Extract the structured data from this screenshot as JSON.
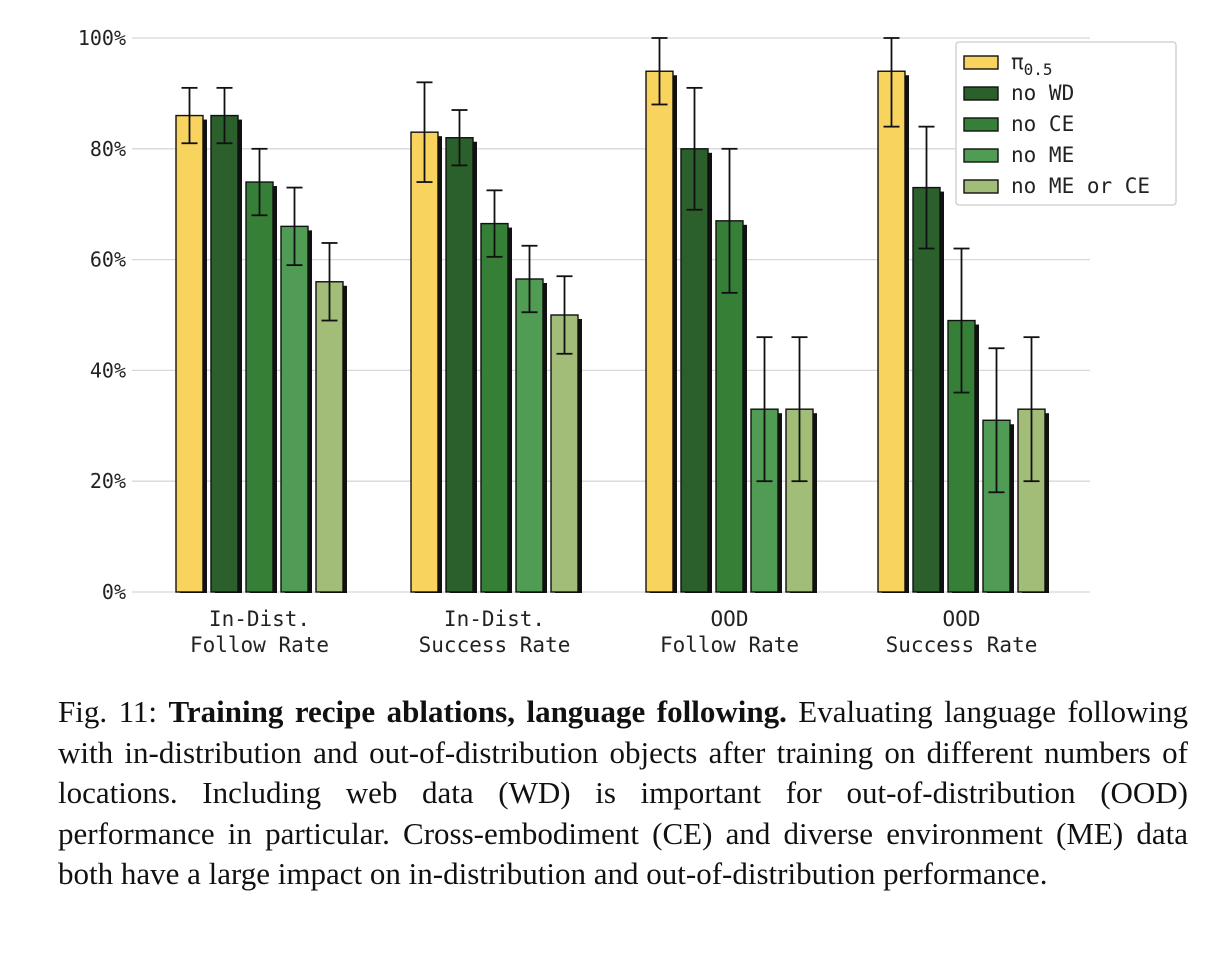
{
  "chart_data": {
    "type": "bar",
    "categories": [
      [
        "In-Dist.",
        "Follow Rate"
      ],
      [
        "In-Dist.",
        "Success Rate"
      ],
      [
        "OOD",
        "Follow Rate"
      ],
      [
        "OOD",
        "Success Rate"
      ]
    ],
    "yticks": [
      "0%",
      "20%",
      "40%",
      "60%",
      "80%",
      "100%"
    ],
    "ylim": [
      0,
      100
    ],
    "grid": "horizontal",
    "legend_position": "top-right",
    "series": [
      {
        "name": "π",
        "name_sub": "0.5",
        "color": "#f8d35e",
        "values": [
          86,
          83,
          94,
          94
        ],
        "err_low": [
          81,
          74,
          88,
          84
        ],
        "err_high": [
          91,
          92,
          100,
          100
        ]
      },
      {
        "name": "no WD",
        "color": "#2b5f2b",
        "values": [
          86,
          82,
          80,
          73
        ],
        "err_low": [
          81,
          77,
          69,
          62
        ],
        "err_high": [
          91,
          87,
          91,
          84
        ]
      },
      {
        "name": "no CE",
        "color": "#367f37",
        "values": [
          74,
          66.5,
          67,
          49
        ],
        "err_low": [
          68,
          60.5,
          54,
          36
        ],
        "err_high": [
          80,
          72.5,
          80,
          62
        ]
      },
      {
        "name": "no ME",
        "color": "#509c54",
        "values": [
          66,
          56.5,
          33,
          31
        ],
        "err_low": [
          59,
          50.5,
          20,
          18
        ],
        "err_high": [
          73,
          62.5,
          46,
          44
        ]
      },
      {
        "name": "no ME or CE",
        "color": "#a2bd77",
        "values": [
          56,
          50,
          33,
          33
        ],
        "err_low": [
          49,
          43,
          20,
          20
        ],
        "err_high": [
          63,
          57,
          46,
          46
        ]
      }
    ]
  },
  "caption": {
    "prefix": "Fig. 11: ",
    "title": "Training recipe ablations, language following.",
    "body": " Evaluating language following with in-distribution and out-of-distribution objects after training on different numbers of locations. Including web data (WD) is important for out-of-distribution (OOD) performance in particular. Cross-embodiment (CE) and diverse environment (ME) data both have a large impact on in-distribution and out-of-distribution performance."
  }
}
